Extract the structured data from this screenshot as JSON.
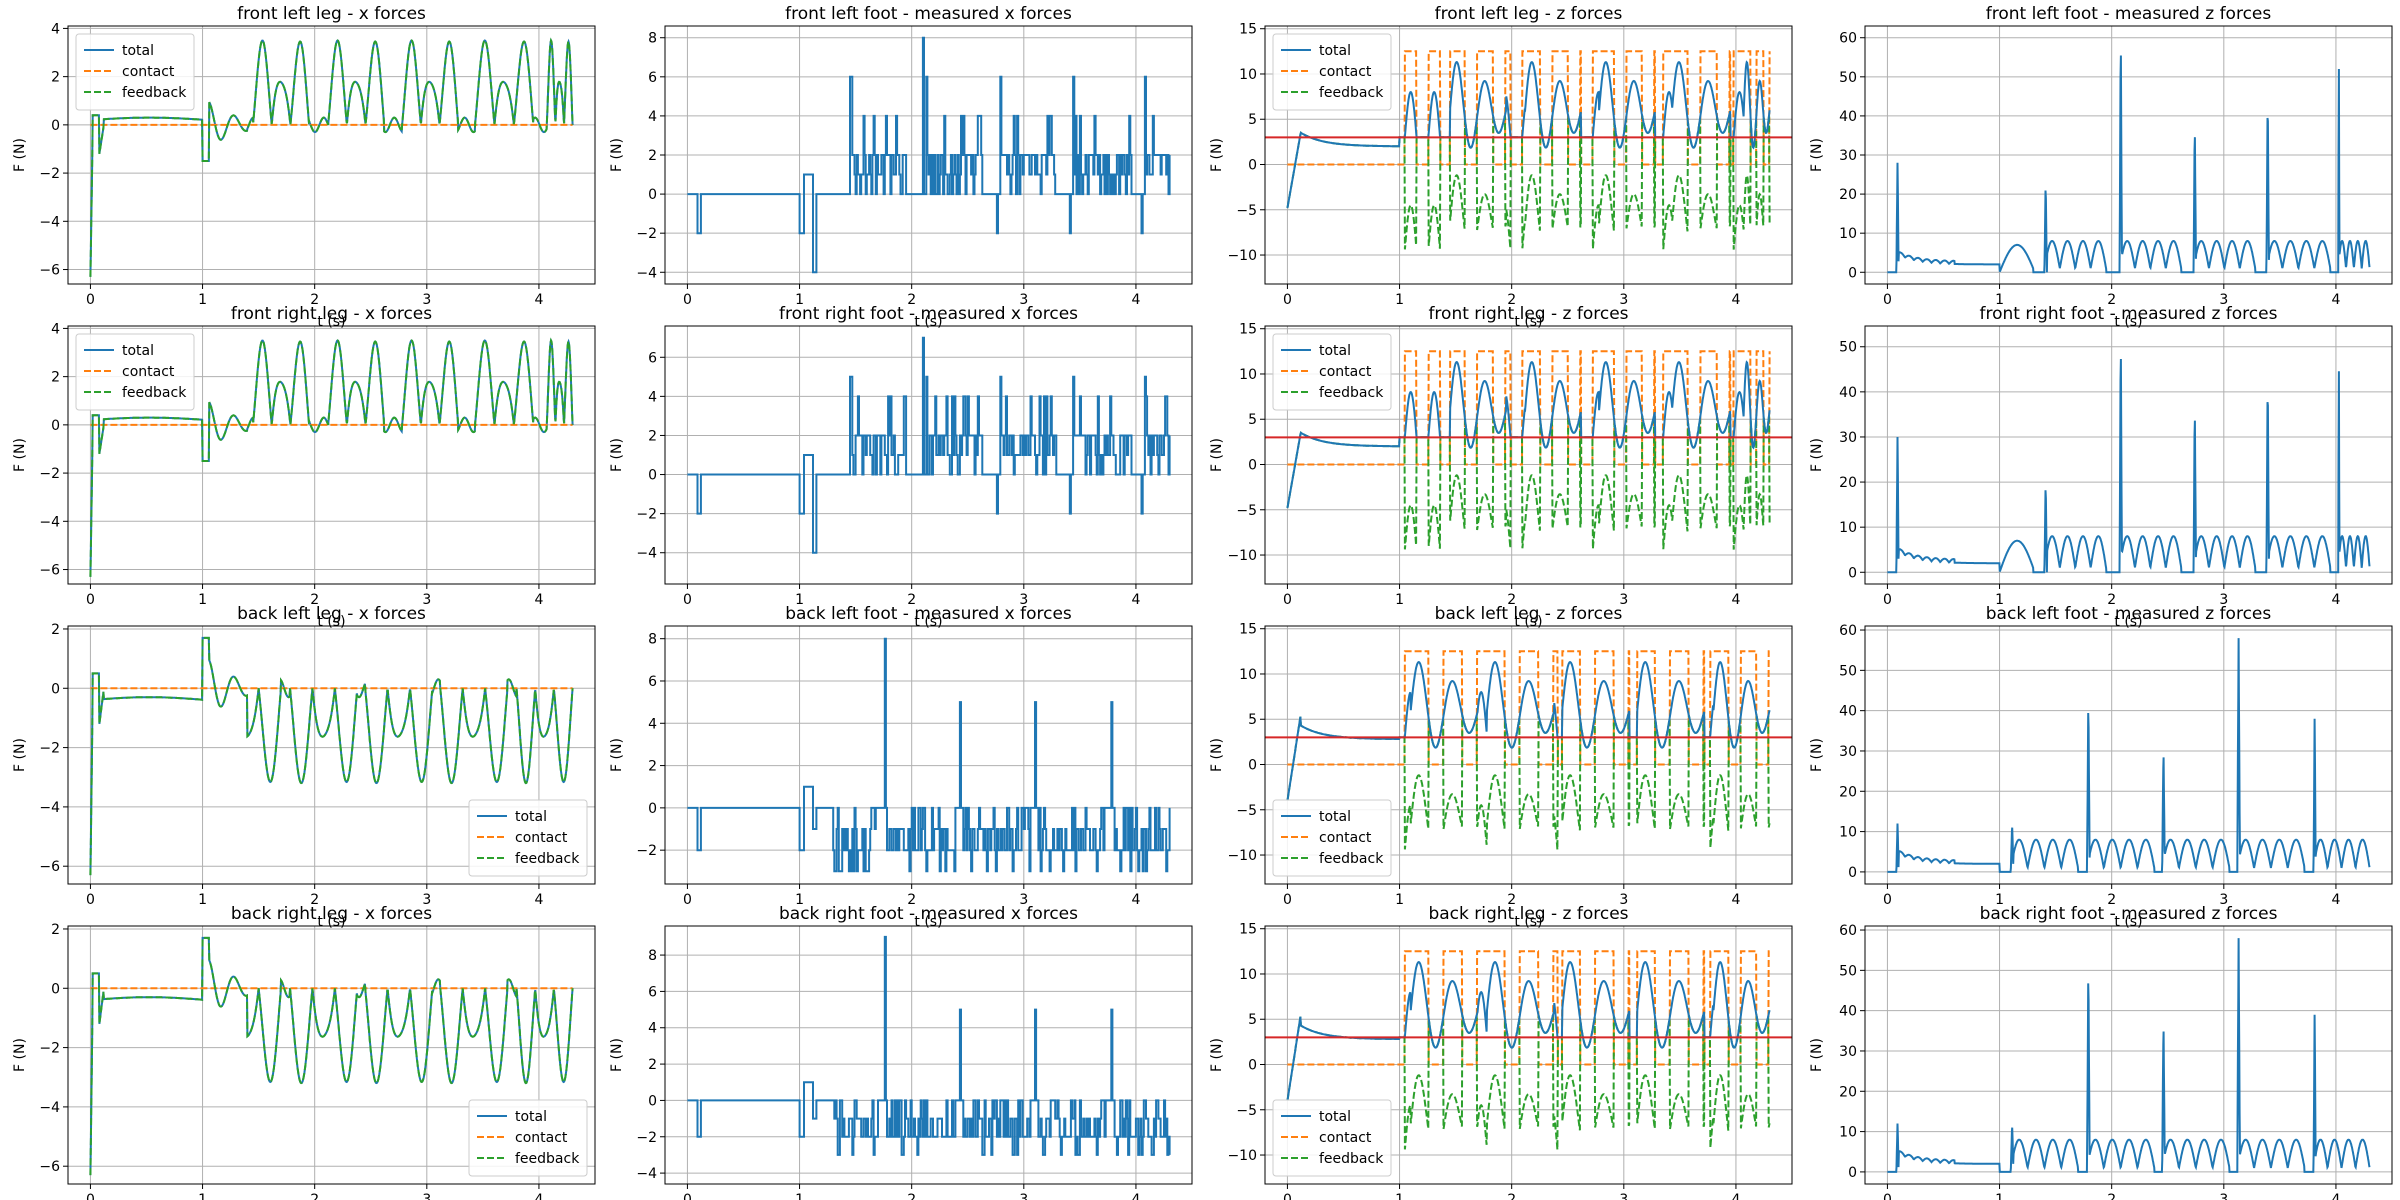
{
  "colors": {
    "total": "#1f77b4",
    "contact": "#ff7f0e",
    "feedback": "#2ca02c",
    "threshold": "#d62728",
    "grid": "#b0b0b0"
  },
  "chart_data": [
    {
      "id": "p00",
      "type": "line",
      "title": "front left leg - x forces",
      "xlabel": "t (s)",
      "ylabel": "F (N)",
      "xlim": [
        -0.2,
        4.5
      ],
      "ylim": [
        -6.6,
        4.1
      ],
      "xticks": [
        0,
        1,
        2,
        3,
        4
      ],
      "yticks": [
        -6,
        -4,
        -2,
        0,
        2,
        4
      ],
      "grid": true,
      "legend": "top-left",
      "kind": "legx",
      "variant": "front",
      "series": [
        {
          "name": "total",
          "style": "solid"
        },
        {
          "name": "contact",
          "style": "dashed"
        },
        {
          "name": "feedback",
          "style": "dashed"
        }
      ]
    },
    {
      "id": "p01",
      "type": "line",
      "title": "front left foot - measured x forces",
      "xlabel": "t (s)",
      "ylabel": "F (N)",
      "xlim": [
        -0.2,
        4.5
      ],
      "ylim": [
        -4.6,
        8.6
      ],
      "xticks": [
        0,
        1,
        2,
        3,
        4
      ],
      "yticks": [
        -4,
        -2,
        0,
        2,
        4,
        6,
        8
      ],
      "grid": true,
      "kind": "footx",
      "variant": "front",
      "peak": 8
    },
    {
      "id": "p02",
      "type": "line",
      "title": "front left leg - z forces",
      "xlabel": "t (s)",
      "ylabel": "F (N)",
      "xlim": [
        -0.2,
        4.5
      ],
      "ylim": [
        -13.2,
        15.3
      ],
      "xticks": [
        0,
        1,
        2,
        3,
        4
      ],
      "yticks": [
        -10,
        -5,
        0,
        5,
        10,
        15
      ],
      "grid": true,
      "legend": "top-left",
      "kind": "legz",
      "variant": "front",
      "threshold": 3,
      "series": [
        {
          "name": "total",
          "style": "solid"
        },
        {
          "name": "contact",
          "style": "dashed"
        },
        {
          "name": "feedback",
          "style": "dashed"
        }
      ]
    },
    {
      "id": "p03",
      "type": "line",
      "title": "front left foot - measured z forces",
      "xlabel": "t (s)",
      "ylabel": "F (N)",
      "xlim": [
        -0.2,
        4.5
      ],
      "ylim": [
        -3,
        63
      ],
      "xticks": [
        0,
        1,
        2,
        3,
        4
      ],
      "yticks": [
        0,
        10,
        20,
        30,
        40,
        50,
        60
      ],
      "grid": true,
      "kind": "footz",
      "variant": "front",
      "peaks": [
        28,
        23,
        61,
        38,
        45,
        56
      ]
    },
    {
      "id": "p10",
      "type": "line",
      "title": "front right leg - x forces",
      "xlabel": "t (s)",
      "ylabel": "F (N)",
      "xlim": [
        -0.2,
        4.5
      ],
      "ylim": [
        -6.6,
        4.1
      ],
      "xticks": [
        0,
        1,
        2,
        3,
        4
      ],
      "yticks": [
        -6,
        -4,
        -2,
        0,
        2,
        4
      ],
      "grid": true,
      "legend": "top-left",
      "kind": "legx",
      "variant": "front",
      "series": [
        {
          "name": "total",
          "style": "solid"
        },
        {
          "name": "contact",
          "style": "dashed"
        },
        {
          "name": "feedback",
          "style": "dashed"
        }
      ]
    },
    {
      "id": "p11",
      "type": "line",
      "title": "front right foot - measured x forces",
      "xlabel": "t (s)",
      "ylabel": "F (N)",
      "xlim": [
        -0.2,
        4.5
      ],
      "ylim": [
        -5.6,
        7.6
      ],
      "xticks": [
        0,
        1,
        2,
        3,
        4
      ],
      "yticks": [
        -4,
        -2,
        0,
        2,
        4,
        6
      ],
      "grid": true,
      "kind": "footx",
      "variant": "front",
      "peak": 7
    },
    {
      "id": "p12",
      "type": "line",
      "title": "front right leg - z forces",
      "xlabel": "t (s)",
      "ylabel": "F (N)",
      "xlim": [
        -0.2,
        4.5
      ],
      "ylim": [
        -13.2,
        15.3
      ],
      "xticks": [
        0,
        1,
        2,
        3,
        4
      ],
      "yticks": [
        -10,
        -5,
        0,
        5,
        10,
        15
      ],
      "grid": true,
      "legend": "top-left",
      "kind": "legz",
      "variant": "front",
      "threshold": 3,
      "series": [
        {
          "name": "total",
          "style": "solid"
        },
        {
          "name": "contact",
          "style": "dashed"
        },
        {
          "name": "feedback",
          "style": "dashed"
        }
      ]
    },
    {
      "id": "p13",
      "type": "line",
      "title": "front right foot - measured z forces",
      "xlabel": "t (s)",
      "ylabel": "F (N)",
      "xlim": [
        -0.2,
        4.5
      ],
      "ylim": [
        -2.6,
        54.6
      ],
      "xticks": [
        0,
        1,
        2,
        3,
        4
      ],
      "yticks": [
        0,
        10,
        20,
        30,
        40,
        50
      ],
      "grid": true,
      "kind": "footz",
      "variant": "front",
      "peaks": [
        30,
        20,
        52,
        37,
        43,
        48
      ]
    },
    {
      "id": "p20",
      "type": "line",
      "title": "back left leg - x forces",
      "xlabel": "t (s)",
      "ylabel": "F (N)",
      "xlim": [
        -0.2,
        4.5
      ],
      "ylim": [
        -6.6,
        2.1
      ],
      "xticks": [
        0,
        1,
        2,
        3,
        4
      ],
      "yticks": [
        -6,
        -4,
        -2,
        0,
        2
      ],
      "grid": true,
      "legend": "bottom-right",
      "kind": "legx",
      "variant": "back",
      "series": [
        {
          "name": "total",
          "style": "solid"
        },
        {
          "name": "contact",
          "style": "dashed"
        },
        {
          "name": "feedback",
          "style": "dashed"
        }
      ]
    },
    {
      "id": "p21",
      "type": "line",
      "title": "back left foot - measured x forces",
      "xlabel": "t (s)",
      "ylabel": "F (N)",
      "xlim": [
        -0.2,
        4.5
      ],
      "ylim": [
        -3.6,
        8.6
      ],
      "xticks": [
        0,
        1,
        2,
        3,
        4
      ],
      "yticks": [
        -2,
        0,
        2,
        4,
        6,
        8
      ],
      "grid": true,
      "kind": "footx",
      "variant": "back",
      "peak": 8
    },
    {
      "id": "p22",
      "type": "line",
      "title": "back left leg - z forces",
      "xlabel": "t (s)",
      "ylabel": "F (N)",
      "xlim": [
        -0.2,
        4.5
      ],
      "ylim": [
        -13.2,
        15.3
      ],
      "xticks": [
        0,
        1,
        2,
        3,
        4
      ],
      "yticks": [
        -10,
        -5,
        0,
        5,
        10,
        15
      ],
      "grid": true,
      "legend": "bottom-left",
      "kind": "legz",
      "variant": "back",
      "threshold": 3,
      "series": [
        {
          "name": "total",
          "style": "solid"
        },
        {
          "name": "contact",
          "style": "dashed"
        },
        {
          "name": "feedback",
          "style": "dashed"
        }
      ]
    },
    {
      "id": "p23",
      "type": "line",
      "title": "back left foot - measured z forces",
      "xlabel": "t (s)",
      "ylabel": "F (N)",
      "xlim": [
        -0.2,
        4.5
      ],
      "ylim": [
        -3,
        61
      ],
      "xticks": [
        0,
        1,
        2,
        3,
        4
      ],
      "yticks": [
        0,
        10,
        20,
        30,
        40,
        50,
        60
      ],
      "grid": true,
      "kind": "footz",
      "variant": "back",
      "peaks": [
        12,
        43,
        31,
        58,
        38
      ]
    },
    {
      "id": "p30",
      "type": "line",
      "title": "back right leg - x forces",
      "xlabel": "t (s)",
      "ylabel": "F (N)",
      "xlim": [
        -0.2,
        4.5
      ],
      "ylim": [
        -6.6,
        2.1
      ],
      "xticks": [
        0,
        1,
        2,
        3,
        4
      ],
      "yticks": [
        -6,
        -4,
        -2,
        0,
        2
      ],
      "grid": true,
      "legend": "bottom-right",
      "kind": "legx",
      "variant": "back",
      "series": [
        {
          "name": "total",
          "style": "solid"
        },
        {
          "name": "contact",
          "style": "dashed"
        },
        {
          "name": "feedback",
          "style": "dashed"
        }
      ]
    },
    {
      "id": "p31",
      "type": "line",
      "title": "back right foot - measured x forces",
      "xlabel": "t (s)",
      "ylabel": "F (N)",
      "xlim": [
        -0.2,
        4.5
      ],
      "ylim": [
        -4.6,
        9.6
      ],
      "xticks": [
        0,
        1,
        2,
        3,
        4
      ],
      "yticks": [
        -4,
        -2,
        0,
        2,
        4,
        6,
        8
      ],
      "grid": true,
      "kind": "footx",
      "variant": "back",
      "peak": 9
    },
    {
      "id": "p32",
      "type": "line",
      "title": "back right leg - z forces",
      "xlabel": "t (s)",
      "ylabel": "F (N)",
      "xlim": [
        -0.2,
        4.5
      ],
      "ylim": [
        -13.2,
        15.3
      ],
      "xticks": [
        0,
        1,
        2,
        3,
        4
      ],
      "yticks": [
        -10,
        -5,
        0,
        5,
        10,
        15
      ],
      "grid": true,
      "legend": "bottom-left",
      "kind": "legz",
      "variant": "back",
      "threshold": 3,
      "series": [
        {
          "name": "total",
          "style": "solid"
        },
        {
          "name": "contact",
          "style": "dashed"
        },
        {
          "name": "feedback",
          "style": "dashed"
        }
      ]
    },
    {
      "id": "p33",
      "type": "line",
      "title": "back right foot - measured z forces",
      "xlabel": "t (s)",
      "ylabel": "F (N)",
      "xlim": [
        -0.2,
        4.5
      ],
      "ylim": [
        -3,
        61
      ],
      "xticks": [
        0,
        1,
        2,
        3,
        4
      ],
      "yticks": [
        0,
        10,
        20,
        30,
        40,
        50,
        60
      ],
      "grid": true,
      "kind": "footz",
      "variant": "back",
      "peaks": [
        12,
        51,
        38,
        58,
        39
      ]
    }
  ]
}
